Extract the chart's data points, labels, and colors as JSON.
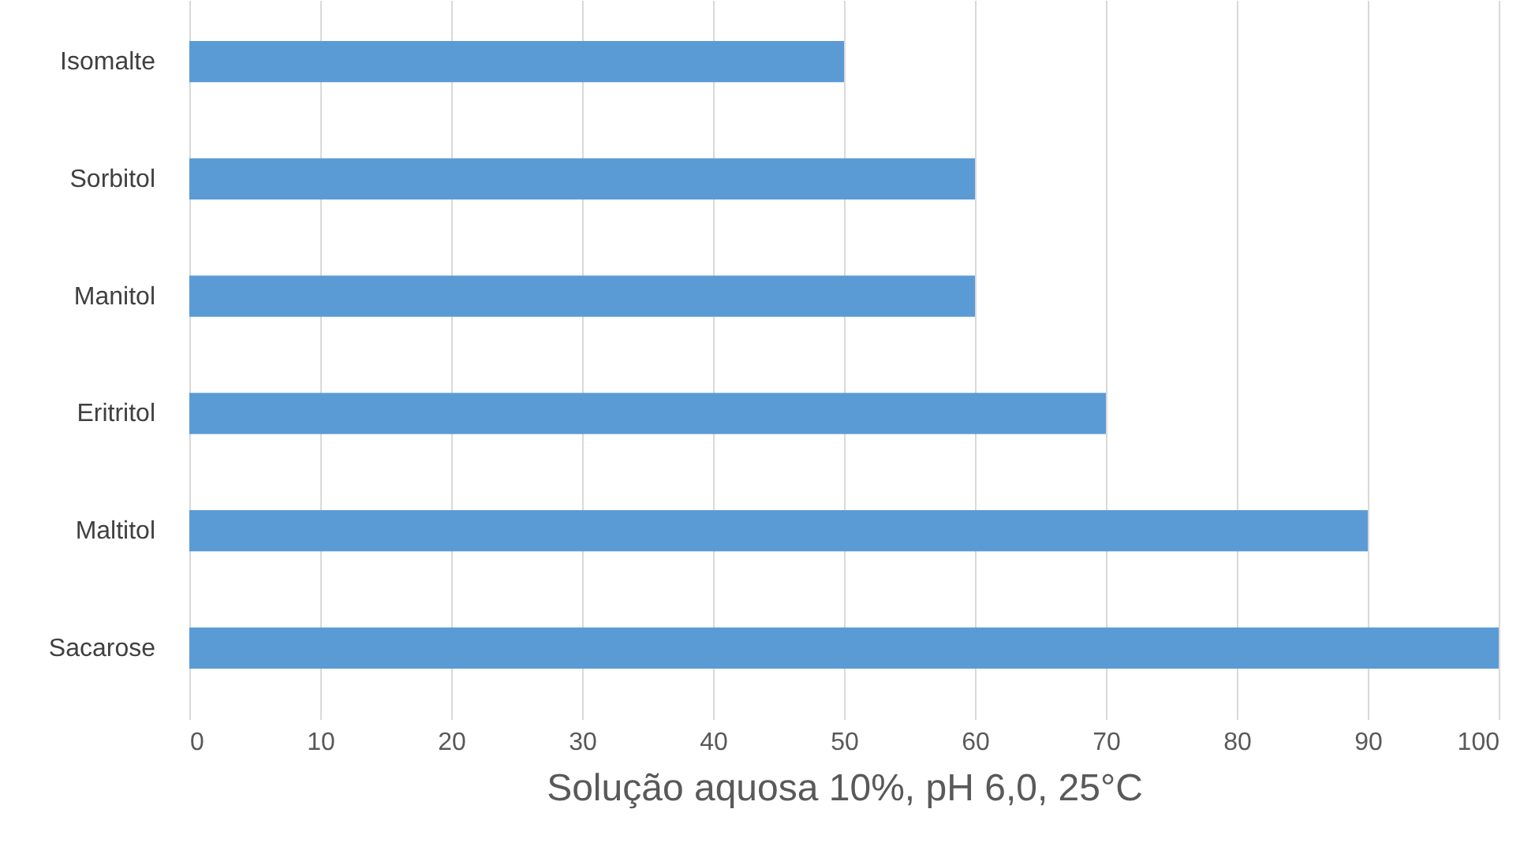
{
  "chart_data": {
    "type": "bar",
    "orientation": "horizontal",
    "xlabel": "Solução aquosa 10%, pH 6,0, 25°C",
    "categories": [
      "Isomalte",
      "Sorbitol",
      "Manitol",
      "Eritritol",
      "Maltitol",
      "Sacarose"
    ],
    "values": [
      50,
      60,
      60,
      70,
      90,
      100
    ],
    "color": "#5b9bd5",
    "xlim": [
      0,
      100
    ],
    "xticks": [
      0,
      10,
      20,
      30,
      40,
      50,
      60,
      70,
      80,
      90,
      100
    ],
    "grid": "x"
  }
}
